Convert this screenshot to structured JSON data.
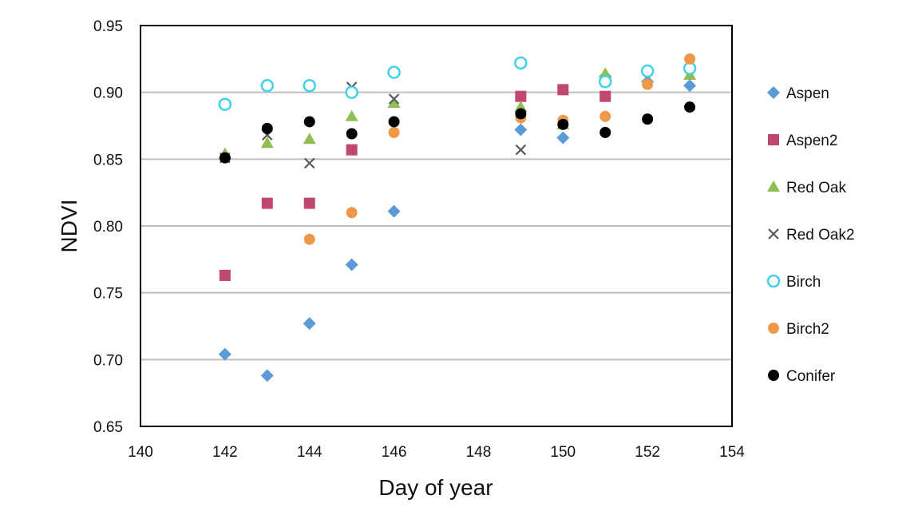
{
  "chart_data": {
    "type": "scatter",
    "title": "",
    "xlabel": "Day of year",
    "ylabel": "NDVI",
    "xlim": [
      140,
      154
    ],
    "ylim": [
      0.65,
      0.95
    ],
    "x_ticks": [
      140,
      142,
      144,
      146,
      148,
      150,
      152,
      154
    ],
    "x_tick_labels": [
      "140",
      "142",
      "144",
      "146",
      "148",
      "150",
      "152",
      "154"
    ],
    "y_ticks": [
      0.65,
      0.7,
      0.75,
      0.8,
      0.85,
      0.9,
      0.95
    ],
    "y_tick_labels": [
      "0.65",
      "0.70",
      "0.75",
      "0.80",
      "0.85",
      "0.90",
      "0.95"
    ],
    "grid": "horizontal",
    "legend_position": "right",
    "series": [
      {
        "name": "Aspen",
        "marker": "diamond",
        "color": "#5b9bd5",
        "x": [
          142,
          143,
          144,
          145,
          146,
          149,
          150,
          151,
          152,
          153
        ],
        "y": [
          0.704,
          0.688,
          0.727,
          0.771,
          0.811,
          0.872,
          0.866,
          0.912,
          0.908,
          0.905
        ]
      },
      {
        "name": "Aspen2",
        "marker": "square",
        "color": "#c0476f",
        "x": [
          142,
          143,
          144,
          145,
          149,
          150,
          151
        ],
        "y": [
          0.763,
          0.817,
          0.817,
          0.857,
          0.897,
          0.902,
          0.897
        ]
      },
      {
        "name": "Red Oak",
        "marker": "triangle",
        "color": "#8fbf52",
        "x": [
          142,
          143,
          144,
          145,
          146,
          149,
          150,
          151,
          153
        ],
        "y": [
          0.854,
          0.862,
          0.865,
          0.882,
          0.892,
          0.889,
          0.876,
          0.914,
          0.913
        ]
      },
      {
        "name": "Red Oak2",
        "marker": "x",
        "color": "#595959",
        "x": [
          142,
          143,
          144,
          145,
          146,
          149
        ],
        "y": [
          0.851,
          0.868,
          0.847,
          0.904,
          0.895,
          0.857
        ]
      },
      {
        "name": "Birch",
        "marker": "circle-open",
        "color": "#3fd1e8",
        "x": [
          142,
          143,
          144,
          145,
          146,
          149,
          151,
          152,
          153
        ],
        "y": [
          0.891,
          0.905,
          0.905,
          0.9,
          0.915,
          0.922,
          0.908,
          0.916,
          0.918
        ]
      },
      {
        "name": "Birch2",
        "marker": "circle",
        "color": "#f0984a",
        "x": [
          144,
          145,
          146,
          149,
          150,
          151,
          152,
          153
        ],
        "y": [
          0.79,
          0.81,
          0.87,
          0.881,
          0.879,
          0.882,
          0.906,
          0.925
        ]
      },
      {
        "name": "Conifer",
        "marker": "circle",
        "color": "#000000",
        "x": [
          142,
          143,
          144,
          145,
          146,
          149,
          150,
          151,
          152,
          153
        ],
        "y": [
          0.851,
          0.873,
          0.878,
          0.869,
          0.878,
          0.884,
          0.876,
          0.87,
          0.88,
          0.889
        ]
      }
    ]
  }
}
